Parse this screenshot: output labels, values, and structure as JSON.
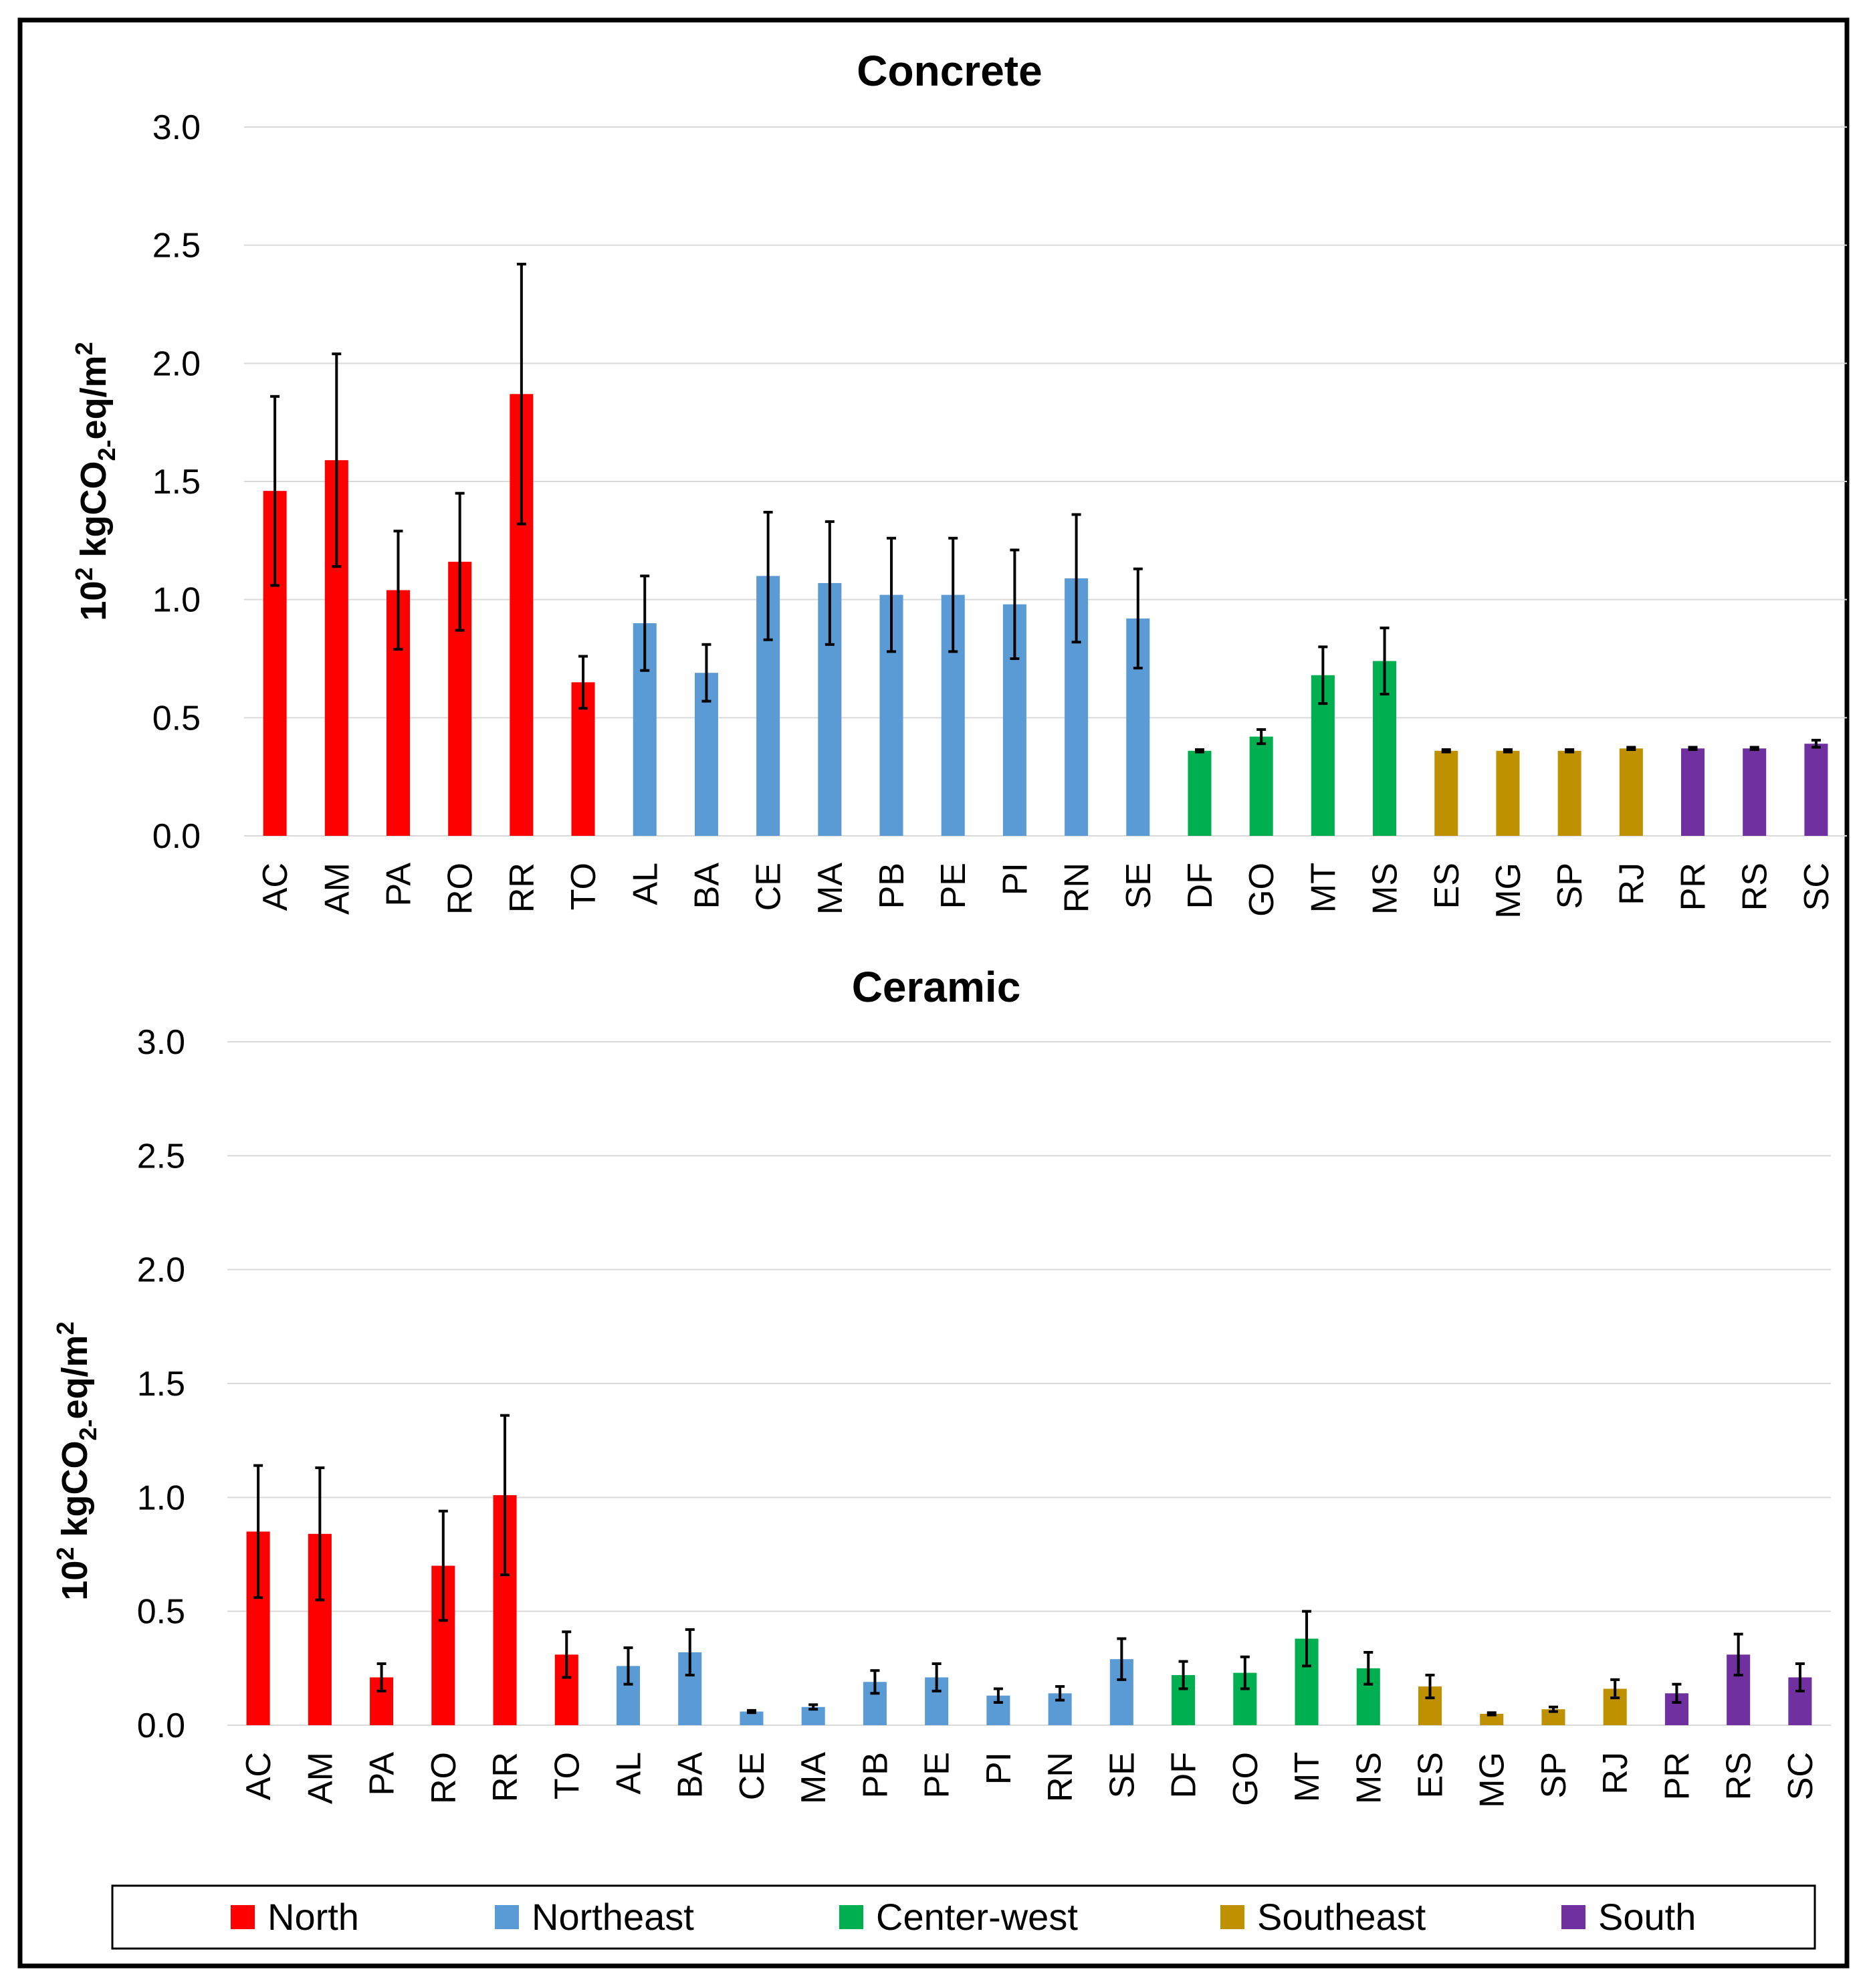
{
  "region_colors": {
    "North": "#ff0000",
    "Northeast": "#5b9bd5",
    "Center-west": "#00b050",
    "Southeast": "#bf9000",
    "South": "#7030a0"
  },
  "legend": [
    "North",
    "Northeast",
    "Center-west",
    "Southeast",
    "South"
  ],
  "chart_data": [
    {
      "type": "bar",
      "title": "Concrete",
      "ylabel_base": "10",
      "ylabel_sup": "2",
      "ylabel_unit_a": " kgCO",
      "ylabel_sub": "2-",
      "ylabel_unit_b": "eq/m",
      "ylabel_sup2": "2",
      "ylim": [
        0,
        3.0
      ],
      "yticks": [
        "0.0",
        "0.5",
        "1.0",
        "1.5",
        "2.0",
        "2.5",
        "3.0"
      ],
      "categories": [
        "AC",
        "AM",
        "PA",
        "RO",
        "RR",
        "TO",
        "AL",
        "BA",
        "CE",
        "MA",
        "PB",
        "PE",
        "PI",
        "RN",
        "SE",
        "DF",
        "GO",
        "MT",
        "MS",
        "ES",
        "MG",
        "SP",
        "RJ",
        "PR",
        "RS",
        "SC"
      ],
      "regions": [
        "North",
        "North",
        "North",
        "North",
        "North",
        "North",
        "Northeast",
        "Northeast",
        "Northeast",
        "Northeast",
        "Northeast",
        "Northeast",
        "Northeast",
        "Northeast",
        "Northeast",
        "Center-west",
        "Center-west",
        "Center-west",
        "Center-west",
        "Southeast",
        "Southeast",
        "Southeast",
        "Southeast",
        "South",
        "South",
        "South"
      ],
      "values": [
        1.46,
        1.59,
        1.04,
        1.16,
        1.87,
        0.65,
        0.9,
        0.69,
        1.1,
        1.07,
        1.02,
        1.02,
        0.98,
        1.09,
        0.92,
        0.36,
        0.42,
        0.68,
        0.74,
        0.36,
        0.36,
        0.36,
        0.37,
        0.37,
        0.37,
        0.39
      ],
      "errors": [
        0.4,
        0.45,
        0.25,
        0.29,
        0.55,
        0.11,
        0.2,
        0.12,
        0.27,
        0.26,
        0.24,
        0.24,
        0.23,
        0.27,
        0.21,
        0.005,
        0.03,
        0.12,
        0.14,
        0.005,
        0.005,
        0.005,
        0.005,
        0.005,
        0.005,
        0.015
      ]
    },
    {
      "type": "bar",
      "title": "Ceramic",
      "ylabel_base": "10",
      "ylabel_sup": "2",
      "ylabel_unit_a": " kgCO",
      "ylabel_sub": "2-",
      "ylabel_unit_b": "eq/m",
      "ylabel_sup2": "2",
      "ylim": [
        0,
        3.0
      ],
      "yticks": [
        "0.0",
        "0.5",
        "1.0",
        "1.5",
        "2.0",
        "2.5",
        "3.0"
      ],
      "categories": [
        "AC",
        "AM",
        "PA",
        "RO",
        "RR",
        "TO",
        "AL",
        "BA",
        "CE",
        "MA",
        "PB",
        "PE",
        "PI",
        "RN",
        "SE",
        "DF",
        "GO",
        "MT",
        "MS",
        "ES",
        "MG",
        "SP",
        "RJ",
        "PR",
        "RS",
        "SC"
      ],
      "regions": [
        "North",
        "North",
        "North",
        "North",
        "North",
        "North",
        "Northeast",
        "Northeast",
        "Northeast",
        "Northeast",
        "Northeast",
        "Northeast",
        "Northeast",
        "Northeast",
        "Northeast",
        "Center-west",
        "Center-west",
        "Center-west",
        "Center-west",
        "Southeast",
        "Southeast",
        "Southeast",
        "Southeast",
        "South",
        "South",
        "South"
      ],
      "values": [
        0.85,
        0.84,
        0.21,
        0.7,
        1.01,
        0.31,
        0.26,
        0.32,
        0.06,
        0.08,
        0.19,
        0.21,
        0.13,
        0.14,
        0.29,
        0.22,
        0.23,
        0.38,
        0.25,
        0.17,
        0.05,
        0.07,
        0.16,
        0.14,
        0.31,
        0.21
      ],
      "errors": [
        0.29,
        0.29,
        0.06,
        0.24,
        0.35,
        0.1,
        0.08,
        0.1,
        0.005,
        0.01,
        0.05,
        0.06,
        0.03,
        0.03,
        0.09,
        0.06,
        0.07,
        0.12,
        0.07,
        0.05,
        0.005,
        0.01,
        0.04,
        0.04,
        0.09,
        0.06
      ]
    }
  ]
}
